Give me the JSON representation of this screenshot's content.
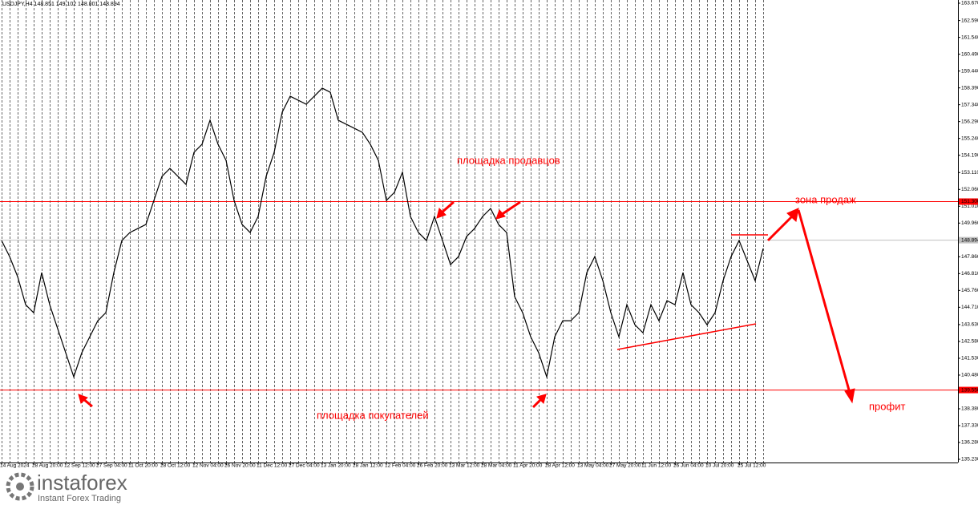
{
  "chart_data": {
    "type": "line",
    "title": "USDJPY,H4  148.851 149.102 148.801 148.894",
    "categories": [
      "14 Aug 2024",
      null,
      null,
      null,
      "28 Aug 20:00",
      null,
      null,
      null,
      "12 Sep 12:00",
      null,
      null,
      null,
      "27 Sep 04:00",
      null,
      null,
      null,
      "11 Oct 20:00",
      null,
      null,
      null,
      "28 Oct 12:00",
      null,
      null,
      null,
      "12 Nov 04:00",
      null,
      null,
      null,
      "26 Nov 20:00",
      null,
      null,
      null,
      "11 Dec 12:00",
      null,
      null,
      null,
      "27 Dec 04:00",
      null,
      null,
      null,
      "13 Jan 20:00",
      null,
      null,
      null,
      "28 Jan 12:00",
      null,
      null,
      null,
      "12 Feb 04:00",
      null,
      null,
      null,
      "26 Feb 20:00",
      null,
      null,
      null,
      "13 Mar 12:00",
      null,
      null,
      null,
      "28 Mar 04:00",
      null,
      null,
      null,
      "11 Apr 20:00",
      null,
      null,
      null,
      "28 Apr 12:00",
      null,
      null,
      null,
      "13 May 04:00",
      null,
      null,
      null,
      "27 May 20:00",
      null,
      null,
      null,
      "11 Jun 12:00",
      null,
      null,
      null,
      "26 Jun 04:00",
      null,
      null,
      null,
      "10 Jul 20:00",
      null,
      null,
      null,
      "25 Jul 12:00",
      null,
      null,
      null
    ],
    "series": [
      {
        "name": "USDJPY",
        "color": "#000000",
        "values": [
          148.87,
          147.87,
          146.62,
          144.87,
          144.37,
          146.87,
          144.87,
          143.37,
          141.87,
          140.37,
          141.87,
          142.87,
          143.87,
          144.37,
          146.87,
          148.87,
          149.37,
          149.62,
          149.87,
          151.37,
          152.87,
          153.37,
          152.87,
          152.37,
          154.37,
          154.87,
          156.37,
          154.87,
          153.87,
          151.37,
          149.87,
          149.37,
          150.37,
          152.87,
          154.37,
          156.87,
          157.87,
          157.62,
          157.37,
          157.87,
          158.37,
          158.12,
          156.37,
          156.12,
          155.87,
          155.62,
          154.87,
          153.87,
          151.37,
          151.87,
          153.12,
          150.37,
          149.37,
          148.87,
          150.37,
          148.87,
          147.37,
          147.87,
          149.12,
          149.62,
          150.37,
          150.87,
          149.87,
          149.37,
          145.37,
          144.37,
          142.87,
          141.87,
          140.37,
          142.87,
          143.87,
          143.87,
          144.37,
          146.87,
          147.87,
          146.37,
          144.37,
          142.87,
          144.87,
          143.62,
          143.12,
          144.87,
          143.87,
          145.12,
          144.87,
          146.87,
          144.87,
          144.37,
          143.62,
          144.37,
          146.37,
          147.87,
          148.87,
          147.62,
          146.37,
          148.37
        ]
      }
    ],
    "ylim": [
      135.03,
      163.87
    ],
    "yticks": [
      {
        "value": 163.67,
        "label": "163.670"
      },
      {
        "value": 162.59,
        "label": "162.590"
      },
      {
        "value": 161.54,
        "label": "161.540"
      },
      {
        "value": 160.49,
        "label": "160.490"
      },
      {
        "value": 159.44,
        "label": "159.440"
      },
      {
        "value": 158.39,
        "label": "158.390"
      },
      {
        "value": 157.34,
        "label": "157.340"
      },
      {
        "value": 156.29,
        "label": "156.290"
      },
      {
        "value": 155.24,
        "label": "155.240"
      },
      {
        "value": 154.19,
        "label": "154.190"
      },
      {
        "value": 153.11,
        "label": "153.110"
      },
      {
        "value": 152.06,
        "label": "152.060"
      },
      {
        "value": 151.01,
        "label": "151.010"
      },
      {
        "value": 149.96,
        "label": "149.960"
      },
      {
        "value": 147.86,
        "label": "147.860"
      },
      {
        "value": 146.81,
        "label": "146.810"
      },
      {
        "value": 145.76,
        "label": "145.760"
      },
      {
        "value": 144.71,
        "label": "144.710"
      },
      {
        "value": 143.63,
        "label": "143.630"
      },
      {
        "value": 142.58,
        "label": "142.580"
      },
      {
        "value": 141.53,
        "label": "141.530"
      },
      {
        "value": 140.48,
        "label": "140.480"
      },
      {
        "value": 139.43,
        "label": "139.430"
      },
      {
        "value": 138.38,
        "label": "138.380"
      },
      {
        "value": 137.33,
        "label": "137.330"
      },
      {
        "value": 136.28,
        "label": "136.280"
      },
      {
        "value": 135.23,
        "label": "135.230"
      }
    ],
    "levels": [
      {
        "value": 151.3,
        "label": "151.300",
        "color": "#ff0000"
      },
      {
        "value": 148.894,
        "label": "148.894",
        "color": "#c0c0c0"
      },
      {
        "value": 139.55,
        "label": "139.550",
        "color": "#ff0000"
      }
    ],
    "annotations": [
      "площадка продавцов",
      "площадка покупателей",
      "зона продаж",
      "профит"
    ]
  },
  "footer": {
    "brand": "instaforex",
    "tagline": "Instant Forex Trading"
  }
}
